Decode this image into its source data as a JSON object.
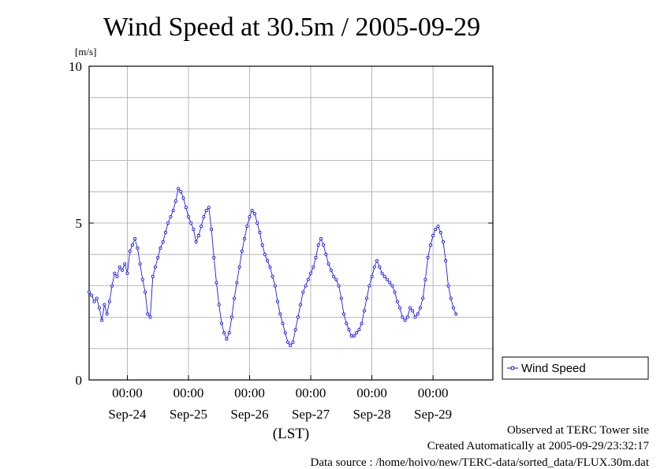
{
  "chart_data": {
    "type": "line",
    "title": "Wind Speed at 30.5m / 2005-09-29",
    "ylabel": "[m/s]",
    "xlabel": "(LST)",
    "ylim": [
      0,
      10
    ],
    "yticks": [
      "0",
      "5",
      "10"
    ],
    "xlim": [
      "2005-09-23 09:00",
      "2005-09-29 23:30"
    ],
    "time_tick_label": "00:00",
    "date_labels": [
      "Sep-24",
      "Sep-25",
      "Sep-26",
      "Sep-27",
      "Sep-28",
      "Sep-29"
    ],
    "grid": true,
    "legend_position": "right",
    "series": [
      {
        "name": "Wind Speed",
        "color": "#0000ff",
        "sample_interval_hours": 1,
        "start": "2005-09-23 09:00",
        "values": [
          2.8,
          2.7,
          2.5,
          2.6,
          2.3,
          1.9,
          2.4,
          2.1,
          2.5,
          3.0,
          3.4,
          3.3,
          3.6,
          3.5,
          3.7,
          3.4,
          4.1,
          4.3,
          4.5,
          4.2,
          3.7,
          3.2,
          2.8,
          2.1,
          2.0,
          3.3,
          3.6,
          3.9,
          4.2,
          4.4,
          4.7,
          5.0,
          5.2,
          5.4,
          5.7,
          6.1,
          6.0,
          5.8,
          5.5,
          5.2,
          5.0,
          4.8,
          4.4,
          4.6,
          4.9,
          5.2,
          5.4,
          5.5,
          4.8,
          3.9,
          3.1,
          2.4,
          1.8,
          1.5,
          1.3,
          1.5,
          2.0,
          2.6,
          3.1,
          3.6,
          4.1,
          4.5,
          4.9,
          5.2,
          5.4,
          5.3,
          5.0,
          4.7,
          4.3,
          4.0,
          3.8,
          3.6,
          3.3,
          3.0,
          2.5,
          2.1,
          1.8,
          1.5,
          1.2,
          1.1,
          1.2,
          1.6,
          2.0,
          2.4,
          2.8,
          3.0,
          3.2,
          3.4,
          3.6,
          3.9,
          4.3,
          4.5,
          4.3,
          4.0,
          3.7,
          3.5,
          3.3,
          3.2,
          3.0,
          2.6,
          2.1,
          1.8,
          1.6,
          1.4,
          1.4,
          1.5,
          1.6,
          1.8,
          2.2,
          2.6,
          3.0,
          3.3,
          3.6,
          3.8,
          3.6,
          3.4,
          3.3,
          3.2,
          3.1,
          3.0,
          2.8,
          2.5,
          2.3,
          2.0,
          1.9,
          2.0,
          2.3,
          2.2,
          2.0,
          2.1,
          2.3,
          2.6,
          3.2,
          3.9,
          4.3,
          4.6,
          4.8,
          4.9,
          4.7,
          4.4,
          3.8,
          3.0,
          2.6,
          2.3,
          2.1
        ]
      }
    ]
  },
  "legend": {
    "label": "Wind Speed"
  },
  "footer": {
    "line1": "Observed at TERC Tower site",
    "line2": "Created Automatically at 2005-09-29/23:32:17",
    "line3": "Data source : /home/hoivo/new/TERC-data/sorted_data/FLUX.30m.dat"
  }
}
